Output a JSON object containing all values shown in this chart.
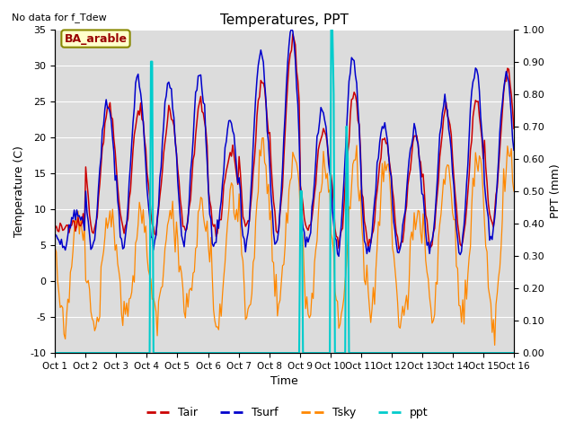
{
  "title": "Temperatures, PPT",
  "subtitle": "No data for f_Tdew",
  "box_label": "BA_arable",
  "xlabel": "Time",
  "ylabel_left": "Temperature (C)",
  "ylabel_right": "PPT (mm)",
  "ylim_left": [
    -10,
    35
  ],
  "ylim_right": [
    0.0,
    1.0
  ],
  "yticks_left": [
    -10,
    -5,
    0,
    5,
    10,
    15,
    20,
    25,
    30,
    35
  ],
  "yticks_right": [
    0.0,
    0.1,
    0.2,
    0.3,
    0.4,
    0.5,
    0.6,
    0.7,
    0.8,
    0.9,
    1.0
  ],
  "xtick_labels": [
    "Oct 1",
    "Oct 2",
    "Oct 3",
    "Oct 4",
    "Oct 5",
    "Oct 6",
    "Oct 7",
    "Oct 8",
    "Oct 9",
    "Oct 10",
    "Oct 11",
    "Oct 12",
    "Oct 13",
    "Oct 14",
    "Oct 15",
    "Oct 16"
  ],
  "n_days": 15,
  "hours_per_day": 24,
  "colors": {
    "Tair": "#cc0000",
    "Tsurf": "#0000cc",
    "Tsky": "#ff8800",
    "ppt": "#00cccc",
    "background": "#dcdcdc",
    "box_fill": "#ffffcc",
    "box_edge": "#888800",
    "grid": "white"
  },
  "tair_peaks": [
    8,
    24,
    24,
    24,
    25,
    18,
    28,
    34,
    21,
    26,
    20,
    20,
    24,
    25,
    29
  ],
  "tair_mins": [
    7,
    7,
    7,
    7,
    7,
    7,
    7,
    7,
    7,
    5,
    5,
    5,
    5,
    5,
    8
  ],
  "tsurf_peaks": [
    10,
    25,
    28,
    28,
    29,
    22,
    32,
    35,
    24,
    31,
    22,
    21,
    25,
    30,
    29
  ],
  "tsurf_mins": [
    5,
    5,
    5,
    5,
    5,
    5,
    5,
    5,
    5,
    4,
    4,
    4,
    4,
    4,
    6
  ],
  "tsky_peaks": [
    10,
    9,
    9,
    10,
    10,
    12,
    18,
    18,
    17,
    17,
    17,
    10,
    17,
    18,
    18
  ],
  "tsky_mins": [
    -6,
    -6,
    -5,
    -4,
    -4,
    -5,
    -4,
    -4,
    -5,
    -6,
    -5,
    -6,
    -5,
    -5,
    -6
  ],
  "ppt_events": {
    "75": 0.9,
    "76": 0.9,
    "192": 0.5,
    "193": 0.5,
    "216": 1.0,
    "217": 1.0,
    "218": 0.8,
    "228": 0.7,
    "229": 0.6
  },
  "figsize": [
    6.4,
    4.8
  ],
  "dpi": 100
}
